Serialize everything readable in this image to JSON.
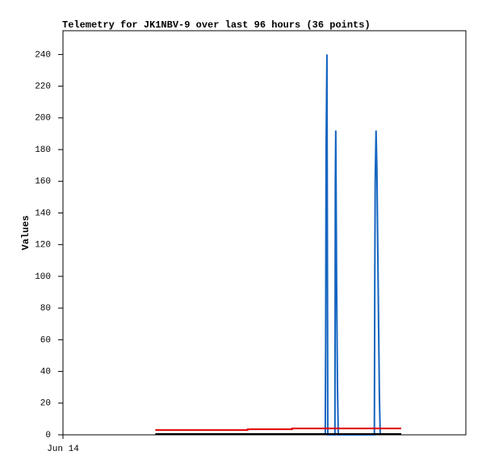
{
  "chart_data": {
    "type": "line",
    "title": "Telemetry for JK1NBV-9 over last 96 hours (36 points)",
    "y_label": "Values",
    "xlim": [
      0,
      96
    ],
    "xticks": [
      {
        "value": 0,
        "label": "Jun 14"
      }
    ],
    "ylim": [
      0,
      255
    ],
    "yticks": [
      0,
      20,
      40,
      60,
      80,
      100,
      120,
      140,
      160,
      180,
      200,
      220,
      240
    ],
    "grid": false,
    "series": [
      {
        "color": "#1565c0",
        "x": [
          62.5,
          62.6,
          62.7,
          62.9,
          63.1,
          64.8,
          64.9,
          65.0,
          65.2,
          65.4,
          65.6,
          74.2,
          74.3,
          74.4,
          74.6,
          74.8,
          75.0,
          75.2,
          75.4,
          75.6
        ],
        "values": [
          0,
          60,
          180,
          240,
          0,
          0,
          160,
          192,
          96,
          32,
          0,
          0,
          96,
          160,
          192,
          168,
          120,
          72,
          24,
          0
        ]
      },
      {
        "color": "#dd0000",
        "x": [
          22,
          44,
          44,
          54.6,
          54.6,
          80.6
        ],
        "values": [
          3,
          3,
          3.5,
          3.5,
          4,
          4
        ]
      },
      {
        "color": "#000000",
        "x": [
          22,
          80.6
        ],
        "values": [
          0.5,
          0.5
        ]
      }
    ]
  }
}
